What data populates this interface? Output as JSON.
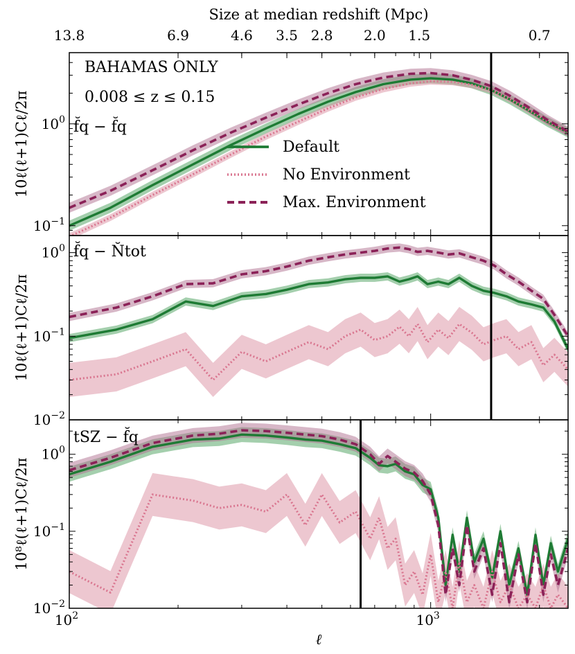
{
  "colors": {
    "default": "#1e7b34",
    "no_env": "#d9758f",
    "max_env": "#8b2258",
    "default_band": "#5aa86a",
    "no_env_band": "#dc8fa2",
    "max_env_band": "#b0708f"
  },
  "top_axis": {
    "title": "Size at median redshift (Mpc)",
    "ticks": [
      {
        "label": "13.8",
        "ell": 100
      },
      {
        "label": "6.9",
        "ell": 200
      },
      {
        "label": "4.6",
        "ell": 300
      },
      {
        "label": "3.5",
        "ell": 400
      },
      {
        "label": "2.8",
        "ell": 500
      },
      {
        "label": "2.0",
        "ell": 700
      },
      {
        "label": "1.5",
        "ell": 930
      },
      {
        "label": "0.7",
        "ell": 2000
      }
    ]
  },
  "x_axis": {
    "label": "ℓ",
    "scale": "log",
    "xlim": [
      100,
      2400
    ],
    "tick_labels": [
      {
        "base": "10",
        "exp": "2",
        "value": 100
      },
      {
        "base": "10",
        "exp": "3",
        "value": 1000
      }
    ]
  },
  "legend": {
    "placement": "upper-center in top panel",
    "entries": [
      {
        "label": "Default",
        "series": "default"
      },
      {
        "label": "No Environment",
        "series": "no_env"
      },
      {
        "label": "Max. Environment",
        "series": "max_env"
      }
    ]
  },
  "chart_data": [
    {
      "type": "line",
      "panel": "top",
      "annotations": [
        "BAHAMAS ONLY",
        "0.008 ≤ z ≤ 0.15",
        "f̆q − f̆q"
      ],
      "ylabel": "10ℓ(ℓ+1)Cℓ/2π",
      "yscale": "log",
      "ylim": [
        0.08,
        5
      ],
      "y_tick_labels": [
        {
          "base": "10",
          "exp": "−1",
          "value": 0.1
        },
        {
          "base": "10",
          "exp": "0",
          "value": 1
        }
      ],
      "vline": 1470,
      "x": [
        100,
        130,
        170,
        220,
        280,
        350,
        430,
        520,
        620,
        740,
        880,
        1000,
        1150,
        1300,
        1470,
        1650,
        1850,
        2100,
        2400
      ],
      "series": [
        {
          "name": "Default",
          "key": "default",
          "values": [
            0.1,
            0.15,
            0.25,
            0.4,
            0.62,
            0.9,
            1.25,
            1.65,
            2.05,
            2.45,
            2.72,
            2.8,
            2.72,
            2.5,
            2.15,
            1.75,
            1.38,
            1.05,
            0.82
          ]
        },
        {
          "name": "No Environment",
          "key": "no_env",
          "values": [
            0.078,
            0.12,
            0.2,
            0.32,
            0.5,
            0.75,
            1.05,
            1.42,
            1.82,
            2.2,
            2.5,
            2.62,
            2.58,
            2.42,
            2.15,
            1.76,
            1.39,
            1.06,
            0.82
          ]
        },
        {
          "name": "Max. Environment",
          "key": "max_env",
          "values": [
            0.15,
            0.22,
            0.35,
            0.55,
            0.82,
            1.15,
            1.55,
            2.0,
            2.45,
            2.85,
            3.1,
            3.15,
            3.0,
            2.7,
            2.35,
            1.9,
            1.48,
            1.1,
            0.84
          ]
        }
      ]
    },
    {
      "type": "line",
      "panel": "middle",
      "annotations": [
        "f̆q − N̆tot"
      ],
      "ylabel": "10ℓ(ℓ+1)Cℓ/2π",
      "yscale": "log",
      "ylim": [
        0.01,
        1.6
      ],
      "y_tick_labels": [
        {
          "base": "10",
          "exp": "−2",
          "value": 0.01
        },
        {
          "base": "10",
          "exp": "−1",
          "value": 0.1
        },
        {
          "base": "10",
          "exp": "0",
          "value": 1
        }
      ],
      "vline": 1470,
      "x": [
        100,
        135,
        170,
        210,
        250,
        300,
        350,
        400,
        460,
        520,
        580,
        640,
        700,
        760,
        820,
        870,
        920,
        980,
        1050,
        1120,
        1200,
        1300,
        1400,
        1500,
        1620,
        1750,
        1900,
        2050,
        2200,
        2400
      ],
      "series": [
        {
          "name": "Default",
          "key": "default",
          "values": [
            0.095,
            0.12,
            0.16,
            0.26,
            0.23,
            0.3,
            0.32,
            0.36,
            0.42,
            0.44,
            0.48,
            0.5,
            0.5,
            0.52,
            0.45,
            0.48,
            0.52,
            0.42,
            0.45,
            0.42,
            0.5,
            0.4,
            0.35,
            0.33,
            0.3,
            0.26,
            0.24,
            0.22,
            0.15,
            0.07
          ]
        },
        {
          "name": "No Environment",
          "key": "no_env",
          "values": [
            0.03,
            0.035,
            0.05,
            0.07,
            0.03,
            0.065,
            0.05,
            0.065,
            0.085,
            0.07,
            0.1,
            0.12,
            0.09,
            0.1,
            0.13,
            0.1,
            0.14,
            0.085,
            0.12,
            0.095,
            0.14,
            0.11,
            0.08,
            0.09,
            0.1,
            0.07,
            0.085,
            0.045,
            0.06,
            0.04
          ]
        },
        {
          "name": "Max. Environment",
          "key": "max_env",
          "values": [
            0.17,
            0.22,
            0.3,
            0.42,
            0.43,
            0.55,
            0.6,
            0.68,
            0.8,
            0.88,
            0.95,
            1.0,
            1.05,
            1.12,
            1.15,
            1.1,
            1.02,
            1.05,
            1.0,
            0.95,
            0.98,
            0.88,
            0.8,
            0.7,
            0.55,
            0.45,
            0.35,
            0.28,
            0.18,
            0.1
          ]
        }
      ]
    },
    {
      "type": "line",
      "panel": "bottom",
      "annotations": [
        "tSZ − f̆q"
      ],
      "ylabel": "10⁸ℓ(ℓ+1)Cℓ/2π",
      "yscale": "log",
      "ylim": [
        0.01,
        2.8
      ],
      "y_tick_labels": [
        {
          "base": "10",
          "exp": "−2",
          "value": 0.01
        },
        {
          "base": "10",
          "exp": "−1",
          "value": 0.1
        },
        {
          "base": "10",
          "exp": "0",
          "value": 1
        }
      ],
      "vline": 640,
      "x": [
        100,
        130,
        170,
        220,
        260,
        300,
        350,
        400,
        450,
        500,
        560,
        620,
        680,
        720,
        760,
        800,
        850,
        900,
        950,
        1000,
        1050,
        1100,
        1150,
        1200,
        1260,
        1320,
        1400,
        1480,
        1560,
        1650,
        1750,
        1850,
        1950,
        2050,
        2150,
        2250,
        2400
      ],
      "series": [
        {
          "name": "Default",
          "key": "default",
          "values": [
            0.55,
            0.8,
            1.25,
            1.55,
            1.6,
            1.8,
            1.75,
            1.65,
            1.55,
            1.5,
            1.35,
            1.2,
            0.9,
            0.72,
            0.7,
            0.75,
            0.6,
            0.55,
            0.4,
            0.35,
            0.15,
            0.02,
            0.09,
            0.03,
            0.15,
            0.04,
            0.08,
            0.025,
            0.1,
            0.02,
            0.06,
            0.015,
            0.09,
            0.02,
            0.07,
            0.03,
            0.08
          ]
        },
        {
          "name": "No Environment",
          "key": "no_env",
          "values": [
            0.03,
            0.016,
            0.3,
            0.25,
            0.2,
            0.22,
            0.18,
            0.3,
            0.12,
            0.3,
            0.13,
            0.18,
            0.08,
            0.15,
            0.06,
            0.08,
            0.02,
            0.03,
            0.015,
            0.05,
            0.012,
            0.03,
            0.01,
            0.04,
            0.012,
            0.02,
            0.01,
            0.03,
            0.012,
            0.02,
            0.01,
            0.015,
            0.01,
            0.02,
            0.01,
            0.015,
            0.01
          ]
        },
        {
          "name": "Max. Environment",
          "key": "max_env",
          "values": [
            0.62,
            0.9,
            1.4,
            1.75,
            1.85,
            2.05,
            2.0,
            1.9,
            1.8,
            1.72,
            1.55,
            1.35,
            1.0,
            0.75,
            0.95,
            0.8,
            0.65,
            0.58,
            0.45,
            0.3,
            0.12,
            0.015,
            0.06,
            0.02,
            0.12,
            0.03,
            0.06,
            0.015,
            0.07,
            0.012,
            0.05,
            0.012,
            0.07,
            0.015,
            0.05,
            0.02,
            0.06
          ]
        }
      ]
    }
  ]
}
